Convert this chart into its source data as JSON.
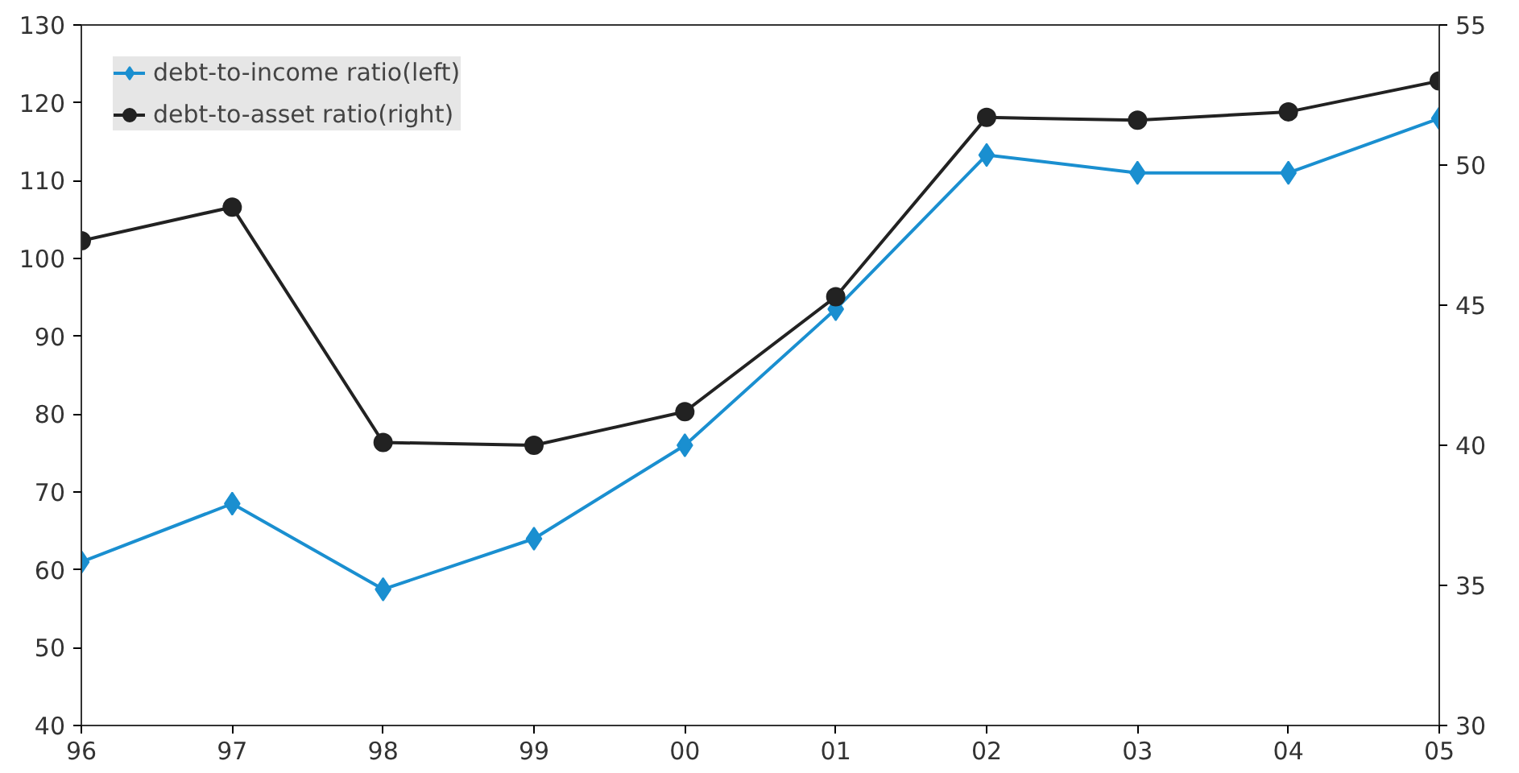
{
  "chart_data": {
    "type": "line",
    "categories": [
      "96",
      "97",
      "98",
      "99",
      "00",
      "01",
      "02",
      "03",
      "04",
      "05"
    ],
    "ylim": [
      40,
      130
    ],
    "yticks": [
      40,
      50,
      60,
      70,
      80,
      90,
      100,
      110,
      120,
      130
    ],
    "y2lim": [
      30,
      55
    ],
    "y2ticks": [
      30,
      35,
      40,
      45,
      50,
      55
    ],
    "grid": false,
    "legend": "top left",
    "line_style": "solid",
    "series": [
      {
        "name": "debt-to-income ratio(left)",
        "color": "#1a8fd0",
        "marker": "diamond",
        "values": [
          61,
          68.5,
          57.5,
          64,
          76,
          93.5,
          113.3,
          111,
          111,
          118
        ]
      },
      {
        "name": "debt-to-asset ratio(right)",
        "color": "#222222",
        "marker": "circle",
        "axis": "y2",
        "values": [
          47.3,
          48.5,
          40.1,
          40.0,
          41.2,
          45.3,
          51.7,
          51.6,
          51.9,
          53.0
        ]
      }
    ]
  }
}
